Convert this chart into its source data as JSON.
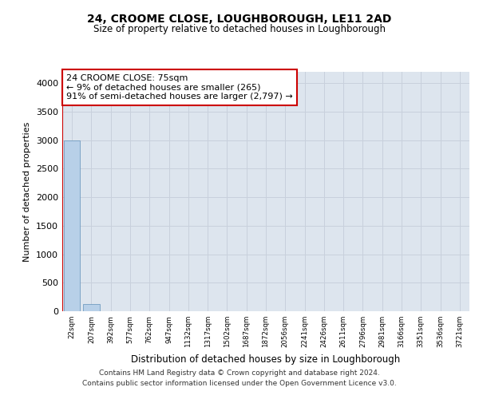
{
  "title": "24, CROOME CLOSE, LOUGHBOROUGH, LE11 2AD",
  "subtitle": "Size of property relative to detached houses in Loughborough",
  "xlabel": "Distribution of detached houses by size in Loughborough",
  "ylabel": "Number of detached properties",
  "x_labels": [
    "22sqm",
    "207sqm",
    "392sqm",
    "577sqm",
    "762sqm",
    "947sqm",
    "1132sqm",
    "1317sqm",
    "1502sqm",
    "1687sqm",
    "1872sqm",
    "2056sqm",
    "2241sqm",
    "2426sqm",
    "2611sqm",
    "2796sqm",
    "2981sqm",
    "3166sqm",
    "3351sqm",
    "3536sqm",
    "3721sqm"
  ],
  "bar_values": [
    3000,
    120,
    0,
    0,
    0,
    0,
    0,
    0,
    0,
    0,
    0,
    0,
    0,
    0,
    0,
    0,
    0,
    0,
    0,
    0,
    0
  ],
  "bar_color": "#b8d0e8",
  "bar_edge_color": "#6090b8",
  "ylim": [
    0,
    4200
  ],
  "yticks": [
    0,
    500,
    1000,
    1500,
    2000,
    2500,
    3000,
    3500,
    4000
  ],
  "property_line_color": "#cc0000",
  "annotation_text": "24 CROOME CLOSE: 75sqm\n← 9% of detached houses are smaller (265)\n91% of semi-detached houses are larger (2,797) →",
  "annotation_box_color": "#cc0000",
  "annotation_text_color": "#000000",
  "grid_color": "#c8d0dc",
  "background_color": "#dde5ee",
  "footnote1": "Contains HM Land Registry data © Crown copyright and database right 2024.",
  "footnote2": "Contains public sector information licensed under the Open Government Licence v3.0."
}
